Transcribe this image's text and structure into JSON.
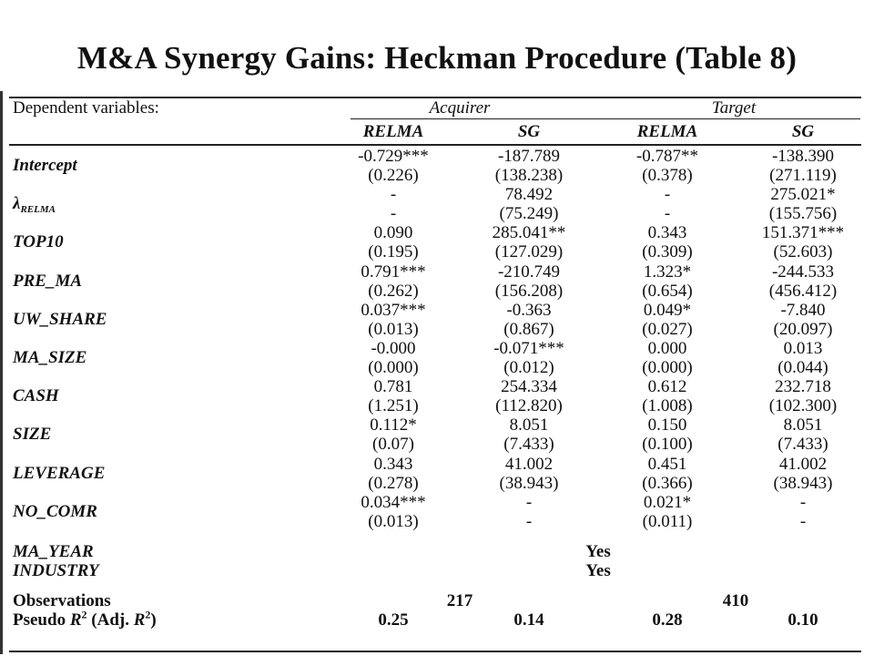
{
  "slide": {
    "title": "M&A Synergy Gains: Heckman Procedure (Table 8)"
  },
  "table": {
    "header": {
      "dep_label": "Dependent variables:",
      "groups": [
        "Acquirer",
        "Target"
      ],
      "columns": [
        "RELMA",
        "SG",
        "RELMA",
        "SG"
      ]
    },
    "rows": [
      {
        "label": "Intercept",
        "coef": [
          "-0.729***",
          "-187.789",
          "-0.787**",
          "-138.390"
        ],
        "se": [
          "(0.226)",
          "(138.238)",
          "(0.378)",
          "(271.119)"
        ]
      },
      {
        "label": "λ",
        "label_sub": "RELMA",
        "coef": [
          "-",
          "78.492",
          "-",
          "275.021*"
        ],
        "se": [
          "-",
          "(75.249)",
          "-",
          "(155.756)"
        ]
      },
      {
        "label": "TOP10",
        "coef": [
          "0.090",
          "285.041**",
          "0.343",
          "151.371***"
        ],
        "se": [
          "(0.195)",
          "(127.029)",
          "(0.309)",
          "(52.603)"
        ]
      },
      {
        "label": "PRE_MA",
        "coef": [
          "0.791***",
          "-210.749",
          "1.323*",
          "-244.533"
        ],
        "se": [
          "(0.262)",
          "(156.208)",
          "(0.654)",
          "(456.412)"
        ]
      },
      {
        "label": "UW_SHARE",
        "coef": [
          "0.037***",
          "-0.363",
          "0.049*",
          "-7.840"
        ],
        "se": [
          "(0.013)",
          "(0.867)",
          "(0.027)",
          "(20.097)"
        ]
      },
      {
        "label": "MA_SIZE",
        "coef": [
          "-0.000",
          "-0.071***",
          "0.000",
          "0.013"
        ],
        "se": [
          "(0.000)",
          "(0.012)",
          "(0.000)",
          "(0.044)"
        ]
      },
      {
        "label": "CASH",
        "coef": [
          "0.781",
          "254.334",
          "0.612",
          "232.718"
        ],
        "se": [
          "(1.251)",
          "(112.820)",
          "(1.008)",
          "(102.300)"
        ]
      },
      {
        "label": "SIZE",
        "coef": [
          "0.112*",
          "8.051",
          "0.150",
          "8.051"
        ],
        "se": [
          "(0.07)",
          "(7.433)",
          "(0.100)",
          "(7.433)"
        ]
      },
      {
        "label": "LEVERAGE",
        "coef": [
          "0.343",
          "41.002",
          "0.451",
          "41.002"
        ],
        "se": [
          "(0.278)",
          "(38.943)",
          "(0.366)",
          "(38.943)"
        ]
      },
      {
        "label": "NO_COMR",
        "coef": [
          "0.034***",
          "-",
          "0.021*",
          "-"
        ],
        "se": [
          "(0.013)",
          "-",
          "(0.011)",
          "-"
        ]
      }
    ],
    "controls": [
      {
        "label": "MA_YEAR",
        "value": "Yes"
      },
      {
        "label": "INDUSTRY",
        "value": "Yes"
      }
    ],
    "observations": {
      "label": "Observations",
      "acquirer": "217",
      "target": "410"
    },
    "pseudo_r2": {
      "label_pre": "Pseudo ",
      "label_r": "R",
      "label_mid": " (Adj. ",
      "label_r2": "R",
      "label_post": ")",
      "sup": "2",
      "values": [
        "0.25",
        "0.14",
        "0.28",
        "0.10"
      ]
    }
  }
}
